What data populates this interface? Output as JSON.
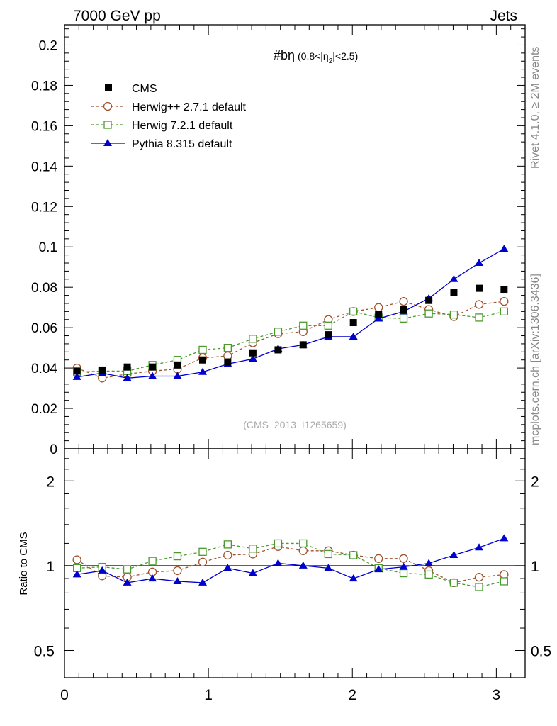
{
  "header": {
    "left": "7000 GeV pp",
    "right": "Jets"
  },
  "side_labels": {
    "rivet": "Rivet 4.1.0, ≥ 2M events",
    "mcplots": "mcplots.cern.ch [arXiv:1306.3436]"
  },
  "chart_data": [
    {
      "type": "scatter",
      "title_main": "#bη",
      "title_sub_a": "(0.8<|η",
      "title_sub_index": "2",
      "title_sub_b": "|<2.5)",
      "watermark": "(CMS_2013_I1265659)",
      "xlim": [
        0,
        3.2
      ],
      "ylim": [
        0,
        0.21
      ],
      "yticks": [
        0,
        0.02,
        0.04,
        0.06,
        0.08,
        0.1,
        0.12,
        0.14,
        0.16,
        0.18,
        0.2
      ],
      "ytick_labels": [
        "0",
        "0.02",
        "0.04",
        "0.06",
        "0.08",
        "0.1",
        "0.12",
        "0.14",
        "0.16",
        "0.18",
        "0.2"
      ],
      "x": [
        0.087,
        0.262,
        0.436,
        0.611,
        0.785,
        0.96,
        1.134,
        1.309,
        1.484,
        1.658,
        1.833,
        2.007,
        2.182,
        2.356,
        2.531,
        2.705,
        2.88,
        3.054
      ],
      "series": [
        {
          "name": "CMS",
          "marker": "filled-square",
          "color": "#000000",
          "line": "none",
          "values": [
            0.0385,
            0.039,
            0.0405,
            0.0405,
            0.0415,
            0.044,
            0.043,
            0.0475,
            0.049,
            0.0515,
            0.0565,
            0.0625,
            0.0665,
            0.069,
            0.0735,
            0.0775,
            0.0795,
            0.079
          ]
        },
        {
          "name": "Herwig++ 2.7.1 default",
          "marker": "open-circle",
          "color": "#a0522d",
          "line": "dashed",
          "values": [
            0.04,
            0.035,
            0.037,
            0.0385,
            0.0395,
            0.045,
            0.046,
            0.0525,
            0.057,
            0.058,
            0.064,
            0.068,
            0.07,
            0.073,
            0.069,
            0.0655,
            0.0715,
            0.073
          ]
        },
        {
          "name": "Herwig 7.2.1 default",
          "marker": "open-square",
          "color": "#4b9a2e",
          "line": "dashed",
          "values": [
            0.038,
            0.0385,
            0.0385,
            0.0415,
            0.044,
            0.049,
            0.05,
            0.0545,
            0.058,
            0.061,
            0.061,
            0.068,
            0.065,
            0.0645,
            0.067,
            0.0665,
            0.065,
            0.068
          ]
        },
        {
          "name": "Pythia 8.315 default",
          "marker": "filled-triangle",
          "color": "#0000cc",
          "line": "solid",
          "values": [
            0.0355,
            0.0375,
            0.035,
            0.036,
            0.036,
            0.038,
            0.042,
            0.0445,
            0.0495,
            0.0515,
            0.0555,
            0.0555,
            0.0645,
            0.068,
            0.0745,
            0.084,
            0.092,
            0.099
          ]
        }
      ]
    },
    {
      "type": "scatter",
      "ylabel": "Ratio to CMS",
      "xlim": [
        0,
        3.2
      ],
      "ylim_log": [
        0.4,
        2.6
      ],
      "yticks": [
        0.5,
        1,
        2
      ],
      "ytick_labels": [
        "0.5",
        "1",
        "2"
      ],
      "xticks": [
        0,
        1,
        2,
        3
      ],
      "xtick_labels": [
        "0",
        "1",
        "2",
        "3"
      ],
      "x": [
        0.087,
        0.262,
        0.436,
        0.611,
        0.785,
        0.96,
        1.134,
        1.309,
        1.484,
        1.658,
        1.833,
        2.007,
        2.182,
        2.356,
        2.531,
        2.705,
        2.88,
        3.054
      ],
      "series": [
        {
          "name": "Herwig++ 2.7.1 default",
          "values": [
            1.05,
            0.92,
            0.91,
            0.95,
            0.96,
            1.03,
            1.09,
            1.1,
            1.17,
            1.13,
            1.13,
            1.09,
            1.06,
            1.06,
            0.96,
            0.87,
            0.91,
            0.93
          ]
        },
        {
          "name": "Herwig 7.2.1 default",
          "values": [
            0.98,
            0.99,
            0.97,
            1.04,
            1.08,
            1.12,
            1.19,
            1.15,
            1.2,
            1.2,
            1.1,
            1.09,
            0.98,
            0.94,
            0.93,
            0.87,
            0.84,
            0.88
          ]
        },
        {
          "name": "Pythia 8.315 default",
          "values": [
            0.93,
            0.96,
            0.87,
            0.9,
            0.88,
            0.87,
            0.98,
            0.94,
            1.02,
            1.0,
            0.98,
            0.9,
            0.97,
            0.99,
            1.02,
            1.09,
            1.16,
            1.25
          ]
        }
      ]
    }
  ]
}
